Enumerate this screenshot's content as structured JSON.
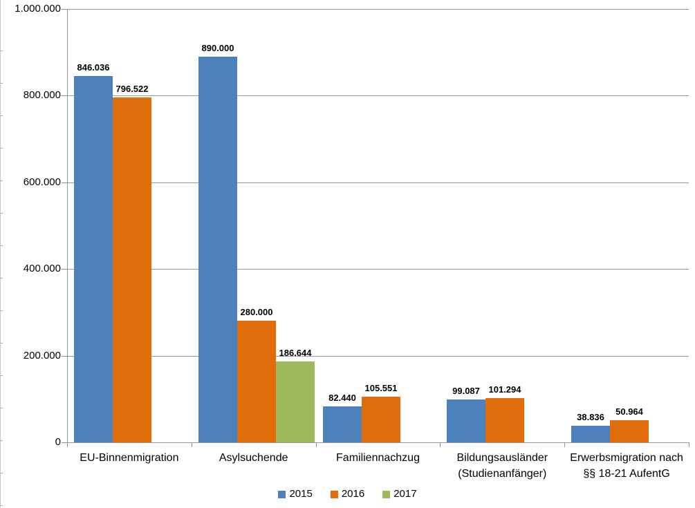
{
  "chart_data": {
    "type": "bar",
    "title": "",
    "xlabel": "",
    "ylabel": "",
    "ylim": [
      0,
      1000000
    ],
    "ytick_interval": 200000,
    "yticks": [
      "0",
      "200.000",
      "400.000",
      "600.000",
      "800.000",
      "1.000.000"
    ],
    "grid": true,
    "legend_position": "bottom",
    "categories": [
      "EU-Binnenmigration",
      "Asylsuchende",
      "Familiennachzug",
      "Bildungsausländer\n(Studienanfänger)",
      "Erwerbsmigration nach\n§§ 18-21 AufentG"
    ],
    "series": [
      {
        "name": "2015",
        "color": "#4D81BC",
        "values": [
          846036,
          890000,
          82440,
          99087,
          38836
        ],
        "labels": [
          "846.036",
          "890.000",
          "82.440",
          "99.087",
          "38.836"
        ]
      },
      {
        "name": "2016",
        "color": "#E16C0B",
        "values": [
          796522,
          280000,
          105551,
          101294,
          50964
        ],
        "labels": [
          "796.522",
          "280.000",
          "105.551",
          "101.294",
          "50.964"
        ]
      },
      {
        "name": "2017",
        "color": "#9CBA5C",
        "values": [
          null,
          186644,
          null,
          null,
          null
        ],
        "labels": [
          null,
          "186.644",
          null,
          null,
          null
        ]
      }
    ]
  },
  "colors": {
    "gridline": "#969696",
    "axis": "#8f8f8f",
    "text": "#000000",
    "background": "#ffffff"
  }
}
